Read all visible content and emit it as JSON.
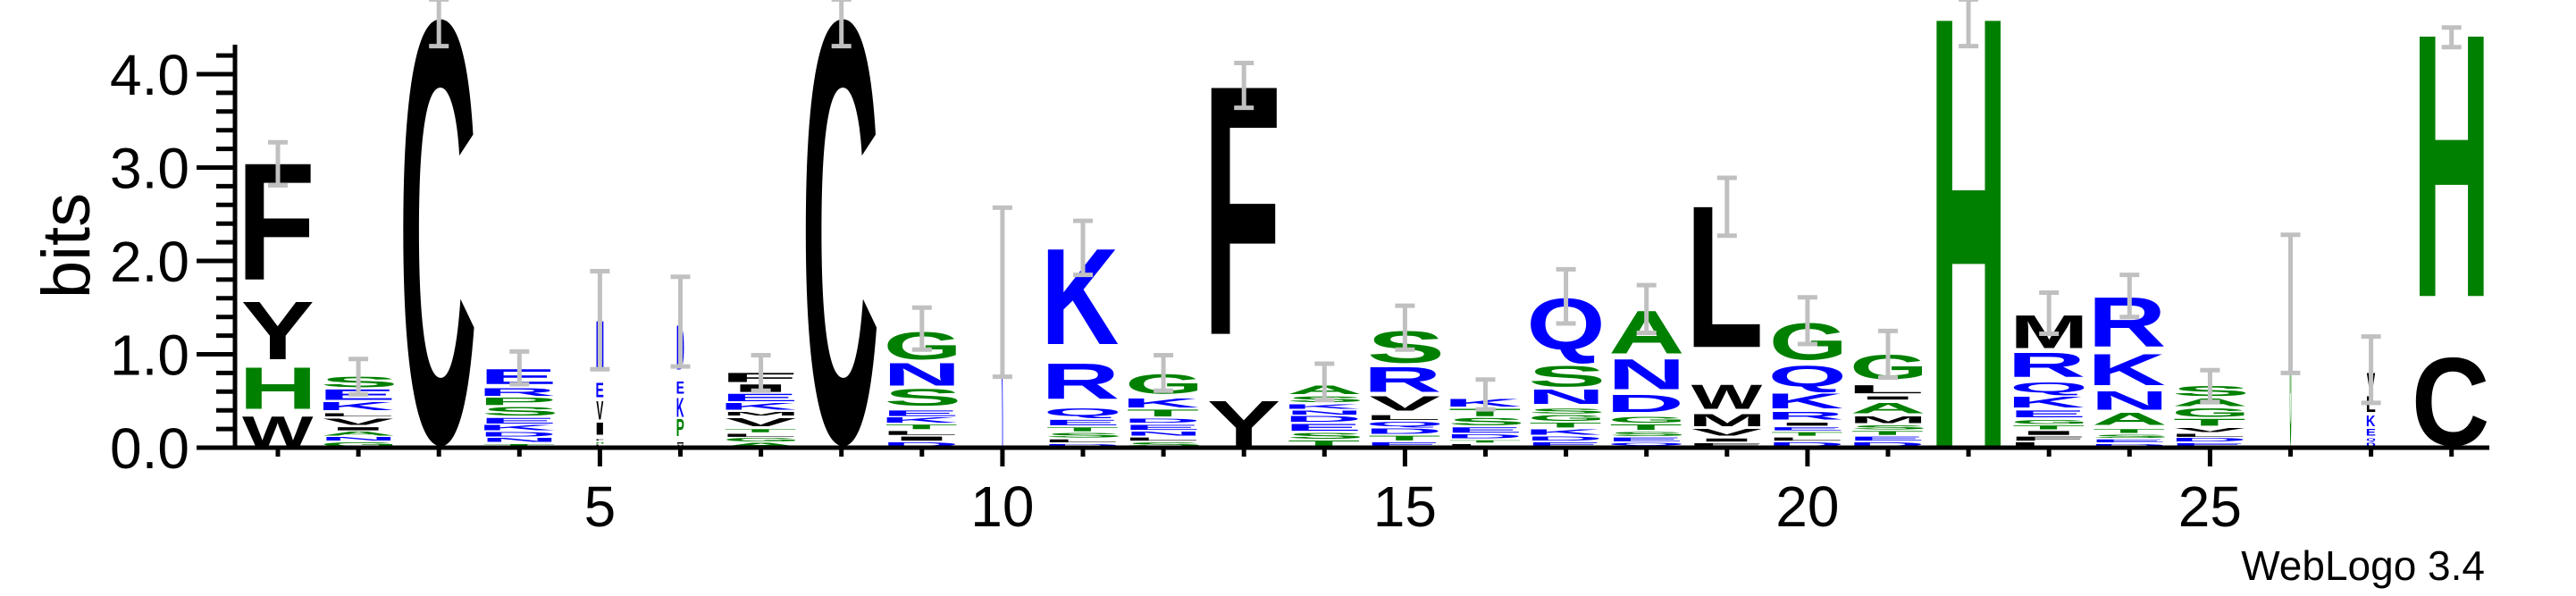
{
  "chart_data": {
    "type": "sequence-logo",
    "ylabel": "bits",
    "xlabel": "",
    "ylim": [
      0,
      4.3
    ],
    "yticks": [
      "0.0",
      "1.0",
      "2.0",
      "3.0",
      "4.0"
    ],
    "xticks": [
      5,
      10,
      15,
      20,
      25
    ],
    "x_range": [
      1,
      28
    ],
    "footer": "WebLogo 3.4",
    "colors": {
      "hydrophobic": "#000000",
      "polar": "#008000",
      "charged": "#0000ff",
      "error_bar": "#c0c0c0"
    },
    "letter_colors": {
      "F": "#000000",
      "Y": "#000000",
      "W": "#000000",
      "L": "#000000",
      "V": "#000000",
      "I": "#000000",
      "M": "#000000",
      "C": "#000000",
      "H": "#008000",
      "G": "#008000",
      "S": "#008000",
      "T": "#008000",
      "A": "#008000",
      "P": "#008000",
      "K": "#0000ff",
      "R": "#0000ff",
      "Q": "#0000ff",
      "N": "#0000ff",
      "D": "#0000ff",
      "E": "#0000ff"
    },
    "columns": [
      {
        "pos": 1,
        "width": 1,
        "stack": [
          [
            "W",
            0.35
          ],
          [
            "H",
            0.52
          ],
          [
            "Y",
            0.71
          ],
          [
            "F",
            1.46
          ]
        ],
        "err": [
          2.81,
          3.27
        ]
      },
      {
        "pos": 2,
        "width": 1,
        "stack": [
          [
            "G",
            0.06
          ],
          [
            "N",
            0.05
          ],
          [
            "A",
            0.06
          ],
          [
            "I",
            0.05
          ],
          [
            "V",
            0.1
          ],
          [
            "L",
            0.05
          ],
          [
            "K",
            0.12
          ],
          [
            "E",
            0.14
          ],
          [
            "S",
            0.13
          ]
        ],
        "err": [
          0.57,
          0.95
        ]
      },
      {
        "pos": 3,
        "width": 1,
        "stack": [
          [
            "C",
            4.6
          ]
        ],
        "err": [
          4.3,
          4.8
        ]
      },
      {
        "pos": 4,
        "width": 1,
        "stack": [
          [
            "T",
            0.04
          ],
          [
            "N",
            0.06
          ],
          [
            "D",
            0.07
          ],
          [
            "K",
            0.07
          ],
          [
            "E",
            0.08
          ],
          [
            "S",
            0.12
          ],
          [
            "P",
            0.1
          ],
          [
            "R",
            0.1
          ],
          [
            "E",
            0.2
          ]
        ],
        "err": [
          0.68,
          1.03
        ]
      },
      {
        "pos": 5,
        "width": 0.1,
        "stack": [
          [
            "L",
            0.03
          ],
          [
            "H",
            0.03
          ],
          [
            "F",
            0.03
          ],
          [
            "I",
            0.18
          ],
          [
            "V",
            0.25
          ],
          [
            "E",
            0.18
          ],
          [
            "N",
            0.66
          ]
        ],
        "err": [
          0.84,
          1.89
        ]
      },
      {
        "pos": 6,
        "width": 0.1,
        "stack": [
          [
            "V",
            0.03
          ],
          [
            "I",
            0.03
          ],
          [
            "P",
            0.25
          ],
          [
            "K",
            0.25
          ],
          [
            "E",
            0.15
          ],
          [
            "D",
            0.6
          ]
        ],
        "err": [
          0.87,
          1.83
        ]
      },
      {
        "pos": 7,
        "width": 1,
        "stack": [
          [
            "A",
            0.05
          ],
          [
            "G",
            0.05
          ],
          [
            "L",
            0.05
          ],
          [
            "T",
            0.05
          ],
          [
            "V",
            0.13
          ],
          [
            "M",
            0.05
          ],
          [
            "K",
            0.1
          ],
          [
            "E",
            0.1
          ],
          [
            "I",
            0.1
          ],
          [
            "F",
            0.12
          ]
        ],
        "err": [
          0.61,
          0.99
        ]
      },
      {
        "pos": 8,
        "width": 1,
        "stack": [
          [
            "C",
            4.6
          ]
        ],
        "err": [
          4.3,
          4.8
        ]
      },
      {
        "pos": 9,
        "width": 1,
        "stack": [
          [
            "D",
            0.06
          ],
          [
            "I",
            0.06
          ],
          [
            "L",
            0.06
          ],
          [
            "T",
            0.07
          ],
          [
            "K",
            0.07
          ],
          [
            "E",
            0.08
          ],
          [
            "S",
            0.23
          ],
          [
            "N",
            0.28
          ],
          [
            "G",
            0.33
          ]
        ],
        "err": [
          1.05,
          1.5
        ]
      },
      {
        "pos": 10,
        "width": 0.02,
        "stack": [
          [
            "K",
            1.67,
            "#0000ff"
          ]
        ],
        "err": [
          0.76,
          2.57
        ]
      },
      {
        "pos": 11,
        "width": 1,
        "stack": [
          [
            "D",
            0.04
          ],
          [
            "L",
            0.05
          ],
          [
            "S",
            0.07
          ],
          [
            "T",
            0.06
          ],
          [
            "E",
            0.08
          ],
          [
            "Q",
            0.12
          ],
          [
            "R",
            0.48
          ],
          [
            "K",
            1.24
          ]
        ],
        "err": [
          1.85,
          2.43
        ]
      },
      {
        "pos": 12,
        "width": 1,
        "stack": [
          [
            "S",
            0.06
          ],
          [
            "L",
            0.05
          ],
          [
            "N",
            0.06
          ],
          [
            "E",
            0.08
          ],
          [
            "D",
            0.06
          ],
          [
            "T",
            0.1
          ],
          [
            "K",
            0.12
          ],
          [
            "G",
            0.26
          ]
        ],
        "err": [
          0.61,
          0.99
        ]
      },
      {
        "pos": 13,
        "width": 1,
        "stack": [
          [
            "Y",
            0.52
          ],
          [
            "F",
            3.34
          ]
        ],
        "err": [
          3.64,
          4.12
        ]
      },
      {
        "pos": 14,
        "width": 1,
        "stack": [
          [
            "T",
            0.08
          ],
          [
            "S",
            0.08
          ],
          [
            "E",
            0.1
          ],
          [
            "D",
            0.08
          ],
          [
            "N",
            0.06
          ],
          [
            "K",
            0.07
          ],
          [
            "S",
            0.08
          ],
          [
            "A",
            0.12
          ]
        ],
        "err": [
          0.51,
          0.9
        ]
      },
      {
        "pos": 15,
        "width": 1,
        "stack": [
          [
            "E",
            0.06
          ],
          [
            "T",
            0.07
          ],
          [
            "D",
            0.07
          ],
          [
            "Q",
            0.08
          ],
          [
            "L",
            0.07
          ],
          [
            "V",
            0.2
          ],
          [
            "R",
            0.32
          ],
          [
            "S",
            0.38
          ]
        ],
        "err": [
          1.05,
          1.52
        ]
      },
      {
        "pos": 16,
        "width": 1,
        "stack": [
          [
            "L",
            0.04
          ],
          [
            "T",
            0.04
          ],
          [
            "D",
            0.06
          ],
          [
            "E",
            0.08
          ],
          [
            "S",
            0.1
          ],
          [
            "T",
            0.1
          ],
          [
            "K",
            0.1
          ]
        ],
        "err": [
          0.41,
          0.73
        ]
      },
      {
        "pos": 17,
        "width": 1,
        "stack": [
          [
            "E",
            0.06
          ],
          [
            "D",
            0.06
          ],
          [
            "K",
            0.08
          ],
          [
            "T",
            0.07
          ],
          [
            "G",
            0.08
          ],
          [
            "S",
            0.07
          ],
          [
            "N",
            0.2
          ],
          [
            "S",
            0.26
          ],
          [
            "Q",
            0.72
          ]
        ],
        "err": [
          1.33,
          1.91
        ]
      },
      {
        "pos": 18,
        "width": 1,
        "stack": [
          [
            "Q",
            0.05
          ],
          [
            "E",
            0.06
          ],
          [
            "S",
            0.06
          ],
          [
            "T",
            0.08
          ],
          [
            "G",
            0.08
          ],
          [
            "D",
            0.24
          ],
          [
            "N",
            0.38
          ],
          [
            "A",
            0.52
          ]
        ],
        "err": [
          1.23,
          1.74
        ]
      },
      {
        "pos": 19,
        "width": 1,
        "stack": [
          [
            "F",
            0.05
          ],
          [
            "I",
            0.05
          ],
          [
            "V",
            0.1
          ],
          [
            "M",
            0.16
          ],
          [
            "W",
            0.32
          ],
          [
            "L",
            1.9
          ]
        ],
        "err": [
          2.27,
          2.89
        ]
      },
      {
        "pos": 20,
        "width": 1,
        "stack": [
          [
            "D",
            0.06
          ],
          [
            "L",
            0.05
          ],
          [
            "T",
            0.06
          ],
          [
            "E",
            0.05
          ],
          [
            "I",
            0.05
          ],
          [
            "R",
            0.11
          ],
          [
            "K",
            0.2
          ],
          [
            "Q",
            0.3
          ],
          [
            "G",
            0.45
          ]
        ],
        "err": [
          1.11,
          1.61
        ]
      },
      {
        "pos": 21,
        "width": 1,
        "stack": [
          [
            "D",
            0.06
          ],
          [
            "E",
            0.06
          ],
          [
            "T",
            0.06
          ],
          [
            "S",
            0.06
          ],
          [
            "M",
            0.1
          ],
          [
            "A",
            0.16
          ],
          [
            "I",
            0.05
          ],
          [
            "L",
            0.12
          ],
          [
            "G",
            0.33
          ]
        ],
        "err": [
          0.75,
          1.25
        ]
      },
      {
        "pos": 22,
        "width": 1,
        "stack": [
          [
            "H",
            4.65
          ]
        ],
        "err": [
          4.3,
          4.8
        ]
      },
      {
        "pos": 23,
        "width": 1,
        "stack": [
          [
            "L",
            0.06
          ],
          [
            "F",
            0.06
          ],
          [
            "I",
            0.06
          ],
          [
            "T",
            0.06
          ],
          [
            "G",
            0.06
          ],
          [
            "E",
            0.1
          ],
          [
            "K",
            0.15
          ],
          [
            "Q",
            0.15
          ],
          [
            "R",
            0.32
          ],
          [
            "M",
            0.4
          ]
        ],
        "err": [
          1.22,
          1.66
        ]
      },
      {
        "pos": 24,
        "width": 1,
        "stack": [
          [
            "D",
            0.04
          ],
          [
            "E",
            0.05
          ],
          [
            "S",
            0.05
          ],
          [
            "T",
            0.06
          ],
          [
            "A",
            0.17
          ],
          [
            "N",
            0.24
          ],
          [
            "K",
            0.4
          ],
          [
            "R",
            0.6
          ]
        ],
        "err": [
          1.4,
          1.85
        ]
      },
      {
        "pos": 25,
        "width": 1,
        "stack": [
          [
            "E",
            0.05
          ],
          [
            "D",
            0.05
          ],
          [
            "L",
            0.05
          ],
          [
            "V",
            0.06
          ],
          [
            "T",
            0.1
          ],
          [
            "G",
            0.12
          ],
          [
            "A",
            0.1
          ],
          [
            "S",
            0.13
          ]
        ],
        "err": [
          0.49,
          0.83
        ]
      },
      {
        "pos": 26,
        "width": 0.02,
        "stack": [
          [
            "G",
            1.53
          ]
        ],
        "err": [
          0.8,
          2.28
        ]
      },
      {
        "pos": 27,
        "width": 0.12,
        "stack": [
          [
            "D",
            0.05
          ],
          [
            "Q",
            0.05
          ],
          [
            "E",
            0.1
          ],
          [
            "K",
            0.15
          ],
          [
            "L",
            0.2
          ],
          [
            "V",
            0.25
          ]
        ],
        "err": [
          0.48,
          1.19
        ]
      },
      {
        "pos": 28,
        "width": 1,
        "stack": [
          [
            "C",
            1.0
          ],
          [
            "H",
            3.45
          ]
        ],
        "err": [
          4.29,
          4.5
        ]
      }
    ]
  }
}
